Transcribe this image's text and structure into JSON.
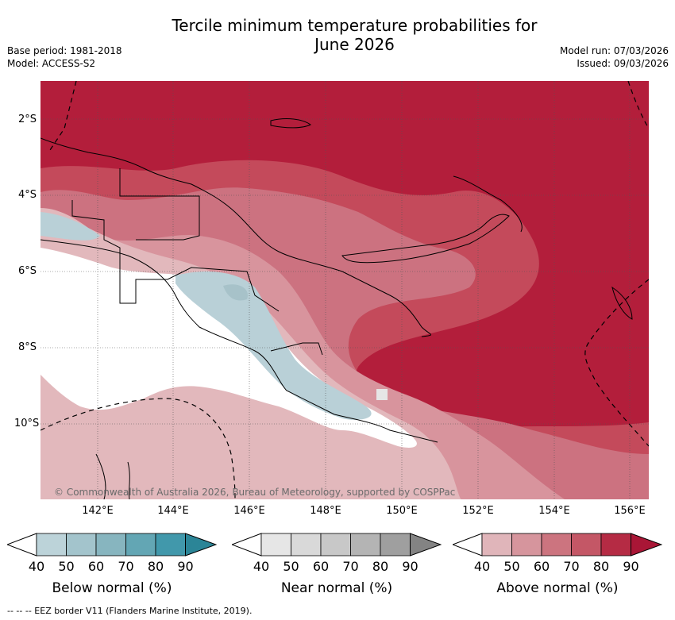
{
  "header": {
    "title_line1": "Tercile minimum temperature probabilities for",
    "title_line2": "June 2026",
    "base_period": "Base period: 1981-2018",
    "model": "Model: ACCESS-S2",
    "model_run": "Model run: 07/03/2026",
    "issued": "Issued: 09/03/2026"
  },
  "map": {
    "lat_ticks": [
      "2°S",
      "4°S",
      "6°S",
      "8°S",
      "10°S"
    ],
    "lon_ticks": [
      "142°E",
      "144°E",
      "146°E",
      "148°E",
      "150°E",
      "152°E",
      "154°E",
      "156°E"
    ],
    "watermark": "© Commonwealth of Australia 2026, Bureau of Meteorology, supported by COSPPac",
    "colors": {
      "above_80": "#b31e3b",
      "above_70": "#c44a5b",
      "above_60": "#cc7280",
      "above_50": "#d8949d",
      "above_40": "#e2b8bc",
      "below_50": "#b9d0d7",
      "below_60": "#a7c2c9",
      "white": "#ffffff"
    }
  },
  "colorbars": [
    {
      "name": "below",
      "label": "Below normal (%)",
      "ticks": [
        "40",
        "50",
        "60",
        "70",
        "80",
        "90"
      ],
      "colors": [
        "#bcd3d9",
        "#a3c4cc",
        "#87b5bf",
        "#63a6b4",
        "#4198ab",
        "#2b8597"
      ]
    },
    {
      "name": "near",
      "label": "Near normal (%)",
      "ticks": [
        "40",
        "50",
        "60",
        "70",
        "80",
        "90"
      ],
      "colors": [
        "#e6e6e6",
        "#d9d9d9",
        "#c8c8c8",
        "#b4b4b4",
        "#9f9f9f",
        "#838383"
      ]
    },
    {
      "name": "above",
      "label": "Above normal (%)",
      "ticks": [
        "40",
        "50",
        "60",
        "70",
        "80",
        "90"
      ],
      "colors": [
        "#e0b5ba",
        "#d6959d",
        "#cc747f",
        "#c45766",
        "#b52b44",
        "#a91636"
      ]
    }
  ],
  "footer": {
    "legend": "--  --  -- EEZ border V11 (Flanders Marine Institute, 2019)."
  }
}
